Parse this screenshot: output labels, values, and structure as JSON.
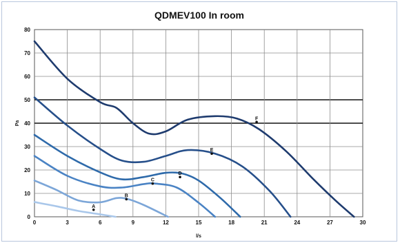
{
  "chart_data": {
    "type": "line",
    "title": "QDMEV100 In room",
    "xlabel": "l/s",
    "ylabel": "Pa",
    "xlim": [
      0,
      30
    ],
    "ylim": [
      0,
      80
    ],
    "xticks": [
      0,
      3,
      6,
      9,
      12,
      15,
      18,
      21,
      24,
      27,
      30
    ],
    "yticks": [
      0,
      10,
      20,
      30,
      40,
      50,
      60,
      70,
      80
    ],
    "grid": true,
    "highlight_lines_y": [
      40,
      50
    ],
    "series": [
      {
        "name": "A",
        "color": "#a9c7ea",
        "x": [
          0,
          2,
          4,
          5.8,
          7.4
        ],
        "y": [
          6.3,
          4.5,
          2.5,
          1.2,
          0
        ],
        "label_at": [
          5.4,
          3.0
        ]
      },
      {
        "name": "B",
        "color": "#7ca6d8",
        "x": [
          0,
          2,
          4,
          6,
          7.5,
          8.5,
          10,
          12.2
        ],
        "y": [
          15.5,
          11.5,
          7,
          6.2,
          8,
          7.6,
          5,
          0
        ],
        "label_at": [
          8.4,
          7.5
        ]
      },
      {
        "name": "C",
        "color": "#4a83c4",
        "x": [
          0,
          3,
          6,
          8,
          10,
          11,
          13,
          15,
          16.5
        ],
        "y": [
          26,
          17.5,
          13,
          12.5,
          14,
          14.2,
          12.5,
          6,
          0
        ],
        "label_at": [
          10.8,
          14.2
        ]
      },
      {
        "name": "D",
        "color": "#2e6aaa",
        "x": [
          0,
          3,
          6,
          8,
          10,
          12,
          13.5,
          15,
          17,
          18.8
        ],
        "y": [
          35,
          26,
          19,
          16,
          17,
          18.8,
          18.5,
          15.5,
          8,
          0
        ],
        "label_at": [
          13.3,
          17
        ]
      },
      {
        "name": "E",
        "color": "#264f8a",
        "x": [
          0,
          3,
          6,
          8,
          10,
          12,
          14,
          16.5,
          19,
          21.5,
          23.4
        ],
        "y": [
          51,
          39,
          29,
          24,
          23.5,
          26,
          28.5,
          27,
          21.5,
          11,
          0
        ],
        "label_at": [
          16.2,
          27
        ]
      },
      {
        "name": "F",
        "color": "#1e3b6e",
        "x": [
          0,
          3,
          6,
          7.5,
          9,
          10.5,
          12,
          14,
          16.5,
          18.5,
          20.5,
          23,
          25.5,
          27.5,
          29.2
        ],
        "y": [
          75,
          59,
          49,
          46.5,
          40,
          35.5,
          36.5,
          41.5,
          43,
          42,
          37.5,
          28,
          16,
          7,
          0
        ],
        "label_at": [
          20.3,
          40.5
        ]
      }
    ]
  }
}
